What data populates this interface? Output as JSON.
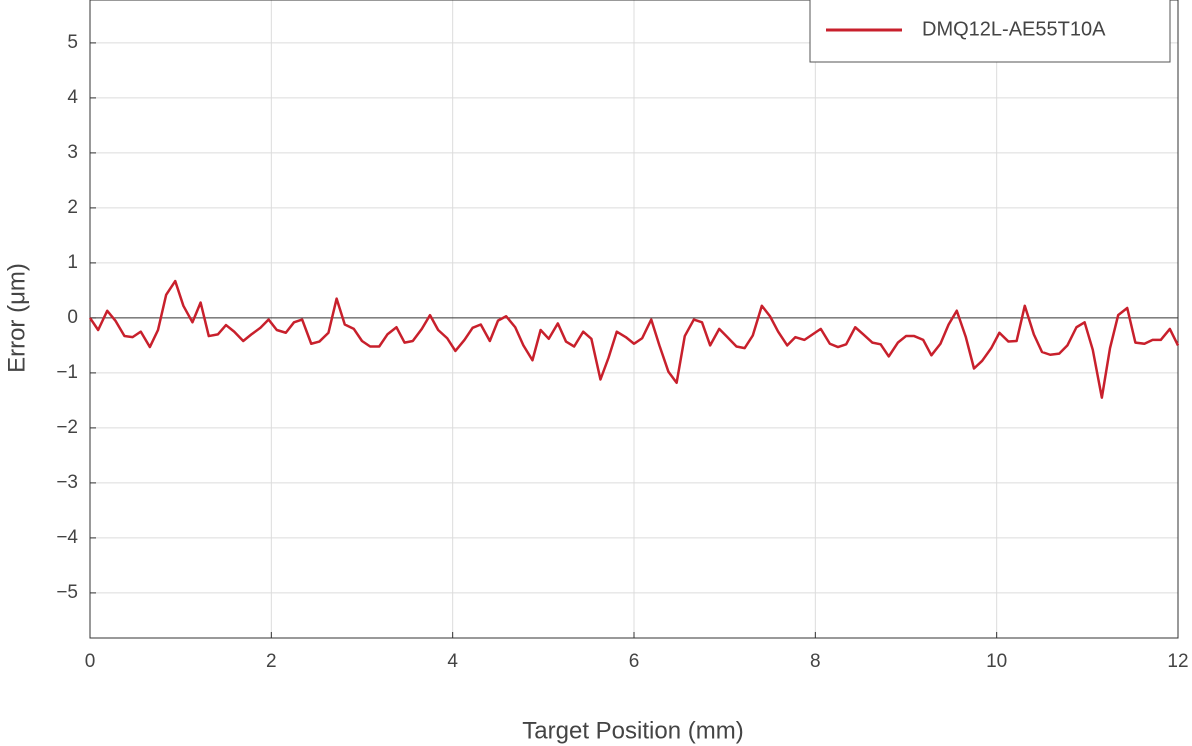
{
  "chart_data": {
    "type": "line",
    "xlabel": "Target Position (mm)",
    "ylabel": "Error (μm)",
    "x": [
      0,
      0.09,
      0.19,
      0.28,
      0.38,
      0.47,
      0.56,
      0.66,
      0.75,
      0.84,
      0.94,
      1.03,
      1.13,
      1.22,
      1.31,
      1.41,
      1.5,
      1.59,
      1.69,
      1.78,
      1.88,
      1.97,
      2.06,
      2.16,
      2.25,
      2.34,
      2.44,
      2.53,
      2.63,
      2.72,
      2.81,
      2.91,
      3,
      3.09,
      3.19,
      3.28,
      3.38,
      3.47,
      3.56,
      3.66,
      3.75,
      3.84,
      3.94,
      4.03,
      4.13,
      4.22,
      4.31,
      4.41,
      4.5,
      4.59,
      4.69,
      4.78,
      4.88,
      4.97,
      5.06,
      5.16,
      5.25,
      5.34,
      5.44,
      5.53,
      5.63,
      5.72,
      5.81,
      5.91,
      6,
      6.09,
      6.19,
      6.28,
      6.38,
      6.47,
      6.56,
      6.66,
      6.75,
      6.84,
      6.94,
      7.03,
      7.13,
      7.22,
      7.31,
      7.41,
      7.5,
      7.59,
      7.69,
      7.78,
      7.88,
      7.97,
      8.06,
      8.16,
      8.25,
      8.34,
      8.44,
      8.53,
      8.63,
      8.72,
      8.81,
      8.91,
      9,
      9.09,
      9.19,
      9.28,
      9.38,
      9.47,
      9.56,
      9.66,
      9.75,
      9.84,
      9.94,
      10.03,
      10.13,
      10.22,
      10.31,
      10.41,
      10.5,
      10.59,
      10.69,
      10.78,
      10.88,
      10.97,
      11.06,
      11.16,
      11.25,
      11.34,
      11.44,
      11.53,
      11.63,
      11.72,
      11.81,
      11.91,
      12
    ],
    "series": [
      {
        "name": "DMQ12L-AE55T10A",
        "color": "#c8202c",
        "values": [
          0,
          -0.22,
          0.13,
          -0.05,
          -0.33,
          -0.35,
          -0.25,
          -0.53,
          -0.22,
          0.42,
          0.67,
          0.22,
          -0.08,
          0.28,
          -0.33,
          -0.3,
          -0.13,
          -0.25,
          -0.42,
          -0.3,
          -0.18,
          -0.03,
          -0.22,
          -0.27,
          -0.08,
          -0.03,
          -0.47,
          -0.43,
          -0.27,
          0.35,
          -0.12,
          -0.2,
          -0.42,
          -0.52,
          -0.52,
          -0.3,
          -0.17,
          -0.45,
          -0.42,
          -0.2,
          0.05,
          -0.22,
          -0.37,
          -0.6,
          -0.4,
          -0.18,
          -0.12,
          -0.42,
          -0.05,
          0.03,
          -0.17,
          -0.5,
          -0.77,
          -0.22,
          -0.38,
          -0.1,
          -0.43,
          -0.52,
          -0.25,
          -0.38,
          -1.12,
          -0.72,
          -0.25,
          -0.35,
          -0.47,
          -0.37,
          -0.03,
          -0.5,
          -0.98,
          -1.18,
          -0.33,
          -0.03,
          -0.08,
          -0.5,
          -0.2,
          -0.35,
          -0.52,
          -0.55,
          -0.32,
          0.22,
          0.03,
          -0.25,
          -0.5,
          -0.35,
          -0.4,
          -0.3,
          -0.2,
          -0.47,
          -0.53,
          -0.48,
          -0.17,
          -0.3,
          -0.45,
          -0.48,
          -0.7,
          -0.45,
          -0.33,
          -0.33,
          -0.4,
          -0.68,
          -0.47,
          -0.12,
          0.13,
          -0.35,
          -0.92,
          -0.78,
          -0.55,
          -0.27,
          -0.43,
          -0.42,
          0.22,
          -0.3,
          -0.62,
          -0.67,
          -0.65,
          -0.5,
          -0.17,
          -0.08,
          -0.58,
          -1.45,
          -0.55,
          0.05,
          0.18,
          -0.45,
          -0.47,
          -0.4,
          -0.4,
          -0.2,
          -0.5
        ]
      }
    ],
    "xlim": [
      0,
      12
    ],
    "xticks": [
      0,
      2,
      4,
      6,
      8,
      10,
      12
    ],
    "ylim": [
      -5.82,
      5.78
    ],
    "yticks": [
      {
        "value": -5,
        "label": "−5"
      },
      {
        "value": -4,
        "label": "−4"
      },
      {
        "value": -3,
        "label": "−3"
      },
      {
        "value": -2,
        "label": "−2"
      },
      {
        "value": -1,
        "label": "−1"
      },
      0,
      1,
      2,
      3,
      4,
      5
    ],
    "grid": true,
    "legend": "upper right"
  }
}
